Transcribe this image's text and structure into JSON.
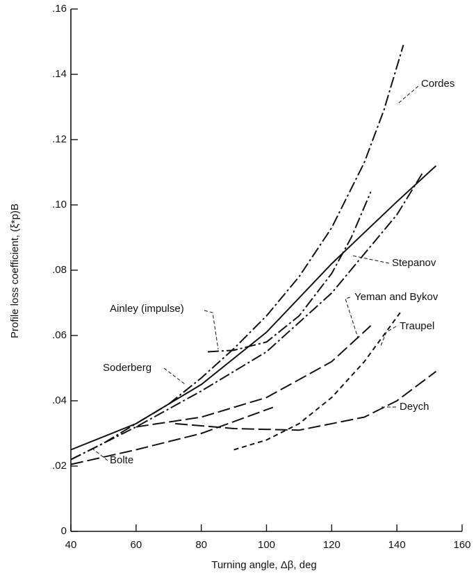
{
  "chart_data": {
    "type": "line",
    "xlabel": "Turning angle, Δβ, deg",
    "ylabel": "Profile loss coefficient, (ξ*p)B",
    "xlim": [
      40,
      160
    ],
    "xticks": [
      40,
      60,
      80,
      100,
      120,
      140,
      160
    ],
    "ylim": [
      0,
      0.16
    ],
    "yticks": [
      0,
      {
        "value": 0.02,
        "label": ".02"
      },
      {
        "value": 0.04,
        "label": ".04"
      },
      {
        "value": 0.06,
        "label": ".06"
      },
      {
        "value": 0.08,
        "label": ".08"
      },
      {
        "value": 0.1,
        "label": ".10"
      },
      {
        "value": 0.12,
        "label": ".12"
      },
      {
        "value": 0.14,
        "label": ".14"
      },
      {
        "value": 0.16,
        "label": ".16"
      }
    ],
    "grid": false,
    "series": [
      {
        "name": "Cordes",
        "color": "#111111",
        "dash": "dashdot",
        "x": [
          40,
          50,
          60,
          70,
          80,
          90,
          100,
          110,
          120,
          130,
          136,
          142
        ],
        "values": [
          0.022,
          0.027,
          0.033,
          0.039,
          0.047,
          0.056,
          0.066,
          0.078,
          0.093,
          0.113,
          0.129,
          0.149
        ]
      },
      {
        "name": "Stepanov",
        "color": "#111111",
        "dash": "solid",
        "x": [
          40,
          60,
          80,
          100,
          120,
          140,
          152
        ],
        "values": [
          0.025,
          0.033,
          0.045,
          0.061,
          0.082,
          0.101,
          0.112
        ]
      },
      {
        "name": "Ainley (impulse)",
        "color": "#111111",
        "dash": "dashdot",
        "x": [
          82,
          90,
          100,
          110,
          120,
          126,
          132
        ],
        "values": [
          0.055,
          0.0555,
          0.058,
          0.066,
          0.079,
          0.09,
          0.104
        ]
      },
      {
        "name": "Soderberg",
        "color": "#111111",
        "dash": "dashdot",
        "x": [
          40,
          60,
          80,
          100,
          120,
          140,
          148
        ],
        "values": [
          0.022,
          0.032,
          0.043,
          0.055,
          0.073,
          0.097,
          0.11
        ]
      },
      {
        "name": "Yeman and Bykov",
        "color": "#111111",
        "dash": "longdash",
        "x": [
          60,
          80,
          100,
          120,
          132
        ],
        "values": [
          0.032,
          0.035,
          0.041,
          0.052,
          0.063
        ]
      },
      {
        "name": "Traupel",
        "color": "#111111",
        "dash": "dashed",
        "x": [
          90,
          100,
          110,
          120,
          130,
          141
        ],
        "values": [
          0.025,
          0.028,
          0.033,
          0.041,
          0.052,
          0.067
        ]
      },
      {
        "name": "Deych",
        "color": "#111111",
        "dash": "longdash",
        "x": [
          72,
          90,
          110,
          130,
          140,
          152
        ],
        "values": [
          0.033,
          0.0315,
          0.031,
          0.035,
          0.04,
          0.049
        ]
      },
      {
        "name": "Bolte",
        "color": "#111111",
        "dash": "longdash",
        "x": [
          40,
          60,
          80,
          102
        ],
        "values": [
          0.0205,
          0.025,
          0.03,
          0.038
        ]
      }
    ]
  }
}
